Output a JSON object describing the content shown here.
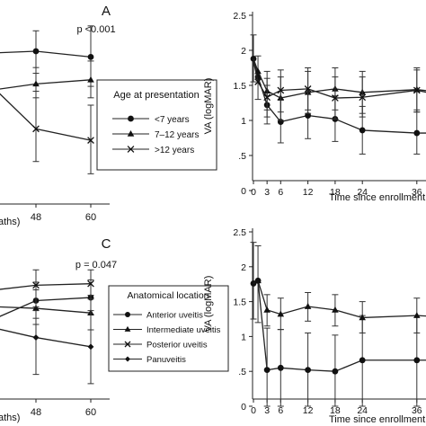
{
  "chart_data": [
    {
      "type": "line",
      "panel_letter": "A",
      "p_value": "p <0.001",
      "xlabel_fragment": "aths)",
      "x_ticks": [
        48,
        60
      ],
      "legend": {
        "title": "Age at presentation",
        "entries": [
          {
            "label": "<7 years",
            "marker": "circle"
          },
          {
            "label": "7–12 years",
            "marker": "triangle"
          },
          {
            "label": ">12 years",
            "marker": "x"
          }
        ]
      },
      "series": [
        {
          "name": "<7 years",
          "marker": "circle",
          "points": [
            {
              "x": 30,
              "y": 1.85
            },
            {
              "x": 48,
              "y": 1.87,
              "lo": 1.6,
              "hi": 2.12
            },
            {
              "x": 60,
              "y": 1.8,
              "lo": 1.44,
              "hi": 2.18
            }
          ]
        },
        {
          "name": "7–12 years",
          "marker": "triangle",
          "points": [
            {
              "x": 30,
              "y": 1.4
            },
            {
              "x": 48,
              "y": 1.47,
              "lo": 1.3,
              "hi": 1.67
            },
            {
              "x": 60,
              "y": 1.52,
              "lo": 1.3,
              "hi": 1.75
            }
          ]
        },
        {
          "name": ">12 years",
          "marker": "x",
          "points": [
            {
              "x": 30,
              "y": 1.4
            },
            {
              "x": 48,
              "y": 0.92,
              "lo": 0.52,
              "hi": 1.38
            },
            {
              "x": 60,
              "y": 0.78,
              "lo": 0.37,
              "hi": 1.21
            }
          ]
        }
      ]
    },
    {
      "type": "line",
      "panel_letter": "",
      "ylabel": "VA (logMAR)",
      "xlabel": "Time since enrollment (m",
      "y_ticks": [
        "0",
        ".5",
        "1",
        "1.5",
        "2",
        "2.5"
      ],
      "x_ticks": [
        0,
        3,
        6,
        12,
        18,
        24,
        36
      ],
      "ylim": [
        0,
        2.5
      ],
      "series": [
        {
          "name": "",
          "marker": "circle",
          "points": [
            {
              "x": 0,
              "y": 1.88,
              "lo": 1.55,
              "hi": 2.22
            },
            {
              "x": 1,
              "y": 1.62,
              "lo": 1.3,
              "hi": 1.92
            },
            {
              "x": 3,
              "y": 1.22,
              "lo": 0.95,
              "hi": 1.5
            },
            {
              "x": 6,
              "y": 0.98,
              "lo": 0.68,
              "hi": 1.3
            },
            {
              "x": 12,
              "y": 1.07,
              "lo": 0.74,
              "hi": 1.4
            },
            {
              "x": 18,
              "y": 1.02,
              "lo": 0.7,
              "hi": 1.35
            },
            {
              "x": 24,
              "y": 0.86,
              "lo": 0.52,
              "hi": 1.2
            },
            {
              "x": 36,
              "y": 0.82,
              "lo": 0.52,
              "hi": 1.15
            },
            {
              "x": 42,
              "y": 0.82
            }
          ]
        },
        {
          "name": "",
          "marker": "triangle",
          "points": [
            {
              "x": 0,
              "y": 1.88
            },
            {
              "x": 1,
              "y": 1.7
            },
            {
              "x": 3,
              "y": 1.42,
              "lo": 1.15,
              "hi": 1.7
            },
            {
              "x": 6,
              "y": 1.32,
              "lo": 1.0,
              "hi": 1.62
            },
            {
              "x": 12,
              "y": 1.4,
              "lo": 1.1,
              "hi": 1.7
            },
            {
              "x": 18,
              "y": 1.45,
              "lo": 1.15,
              "hi": 1.75
            },
            {
              "x": 24,
              "y": 1.4,
              "lo": 1.1,
              "hi": 1.7
            },
            {
              "x": 36,
              "y": 1.44,
              "lo": 1.12,
              "hi": 1.75
            },
            {
              "x": 42,
              "y": 1.4
            }
          ]
        },
        {
          "name": "",
          "marker": "x",
          "points": [
            {
              "x": 0,
              "y": 1.85
            },
            {
              "x": 1,
              "y": 1.55
            },
            {
              "x": 3,
              "y": 1.33,
              "lo": 1.05,
              "hi": 1.6
            },
            {
              "x": 6,
              "y": 1.43,
              "lo": 1.12,
              "hi": 1.72
            },
            {
              "x": 12,
              "y": 1.45,
              "lo": 1.15,
              "hi": 1.75
            },
            {
              "x": 18,
              "y": 1.32,
              "lo": 1.02,
              "hi": 1.62
            },
            {
              "x": 24,
              "y": 1.33,
              "lo": 1.05,
              "hi": 1.62
            },
            {
              "x": 36,
              "y": 1.43,
              "lo": 1.12,
              "hi": 1.72
            },
            {
              "x": 42,
              "y": 1.35
            }
          ]
        }
      ]
    },
    {
      "type": "line",
      "panel_letter": "C",
      "p_value": "p = 0.047",
      "xlabel_fragment": "aths)",
      "x_ticks": [
        48,
        60
      ],
      "legend": {
        "title": "Anatomical location",
        "entries": [
          {
            "label": "Anterior uveitis",
            "marker": "circle"
          },
          {
            "label": "Intermediate uveitis",
            "marker": "triangle"
          },
          {
            "label": "Posterior uveitis",
            "marker": "x"
          },
          {
            "label": "Panuveitis",
            "marker": "diamond"
          }
        ]
      },
      "series": [
        {
          "name": "Anterior uveitis",
          "marker": "circle",
          "points": [
            {
              "x": 30,
              "y": 1.35
            },
            {
              "x": 48,
              "y": 1.58,
              "lo": 1.35,
              "hi": 1.82
            },
            {
              "x": 60,
              "y": 1.62,
              "lo": 1.4,
              "hi": 1.85
            }
          ]
        },
        {
          "name": "Intermediate uveitis",
          "marker": "triangle",
          "points": [
            {
              "x": 30,
              "y": 1.5
            },
            {
              "x": 48,
              "y": 1.48,
              "lo": 1.27,
              "hi": 1.72
            },
            {
              "x": 60,
              "y": 1.42,
              "lo": 1.2,
              "hi": 1.65
            }
          ]
        },
        {
          "name": "Posterior uveitis",
          "marker": "x",
          "points": [
            {
              "x": 30,
              "y": 1.72
            },
            {
              "x": 48,
              "y": 1.78,
              "lo": 1.5,
              "hi": 1.98
            },
            {
              "x": 60,
              "y": 1.8,
              "lo": 1.6,
              "hi": 1.98
            }
          ]
        },
        {
          "name": "Panuveitis",
          "marker": "diamond",
          "points": [
            {
              "x": 30,
              "y": 1.22
            },
            {
              "x": 48,
              "y": 1.1,
              "lo": 0.62,
              "hi": 1.45
            },
            {
              "x": 60,
              "y": 0.98,
              "lo": 0.5,
              "hi": 1.45
            }
          ]
        }
      ]
    },
    {
      "type": "line",
      "panel_letter": "",
      "ylabel": "VA (logMAR)",
      "xlabel": "Time since enrollment (m",
      "y_ticks": [
        "0",
        ".5",
        "1",
        "1.5",
        "2",
        "2.5"
      ],
      "x_ticks": [
        0,
        3,
        6,
        12,
        18,
        24,
        36
      ],
      "ylim": [
        0,
        2.5
      ],
      "series": [
        {
          "name": "",
          "marker": "circle",
          "points": [
            {
              "x": 0,
              "y": 1.76,
              "lo": 1.25,
              "hi": 2.35
            },
            {
              "x": 1,
              "y": 1.8,
              "lo": 1.2,
              "hi": 2.3
            },
            {
              "x": 3,
              "y": 0.52,
              "lo": 0.0,
              "hi": 1.12
            },
            {
              "x": 6,
              "y": 0.55,
              "lo": 0.0,
              "hi": 1.1
            },
            {
              "x": 12,
              "y": 0.52,
              "lo": 0.0,
              "hi": 1.05
            },
            {
              "x": 18,
              "y": 0.5,
              "lo": 0.0,
              "hi": 1.02
            },
            {
              "x": 24,
              "y": 0.66,
              "lo": 0.0,
              "hi": 1.3
            },
            {
              "x": 36,
              "y": 0.66,
              "lo": 0.0,
              "hi": 1.3
            },
            {
              "x": 42,
              "y": 0.66
            }
          ]
        },
        {
          "name": "",
          "marker": "triangle",
          "points": [
            {
              "x": 0,
              "y": 1.76
            },
            {
              "x": 1,
              "y": 1.8
            },
            {
              "x": 3,
              "y": 1.38,
              "lo": 1.15,
              "hi": 1.6
            },
            {
              "x": 6,
              "y": 1.32,
              "lo": 1.1,
              "hi": 1.55
            },
            {
              "x": 12,
              "y": 1.43,
              "lo": 1.22,
              "hi": 1.63
            },
            {
              "x": 18,
              "y": 1.38,
              "lo": 1.15,
              "hi": 1.6
            },
            {
              "x": 24,
              "y": 1.27,
              "lo": 1.05,
              "hi": 1.5
            },
            {
              "x": 36,
              "y": 1.3,
              "lo": 1.05,
              "hi": 1.55
            },
            {
              "x": 42,
              "y": 1.28
            }
          ]
        }
      ]
    }
  ]
}
